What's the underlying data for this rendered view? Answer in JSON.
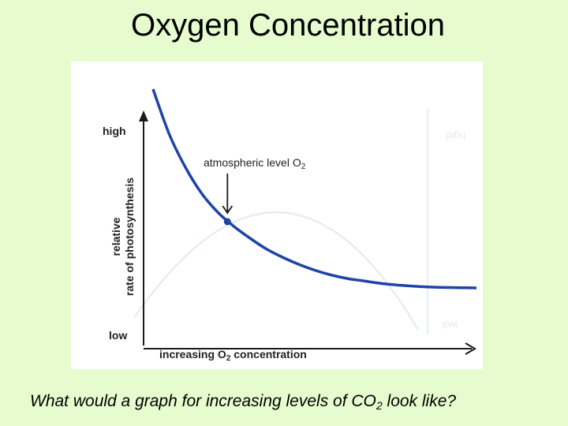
{
  "slide": {
    "title": "Oxygen Concentration",
    "caption_main": "What would a graph for increasing levels of CO",
    "caption_sub": "2",
    "caption_end": " look like?"
  },
  "colors": {
    "background": "#e6fccf",
    "curve": "#1f44a8",
    "axis": "#1a1a1a",
    "bleed_through": "#c8d8e8"
  },
  "chart_data": {
    "type": "line",
    "title": "",
    "xlabel_prefix": "increasing O",
    "xlabel_sub": "2",
    "xlabel_suffix": " concentration",
    "ylabel_line1": "relative",
    "ylabel_line2": "rate of photosynthesis",
    "y_high_label": "high",
    "y_low_label": "low",
    "xlim": [
      0,
      100
    ],
    "ylim": [
      0,
      100
    ],
    "series": [
      {
        "x": [
          0,
          5,
          10,
          15,
          20,
          25,
          30,
          35,
          40,
          45,
          50,
          55,
          60,
          65,
          70,
          75,
          80,
          85,
          90,
          95,
          100
        ],
        "values": [
          97,
          78,
          64,
          53,
          45,
          39,
          34,
          29.5,
          26,
          23,
          20.5,
          18.5,
          17,
          16,
          15,
          14.3,
          13.8,
          13.4,
          13.2,
          13.1,
          13
        ]
      }
    ],
    "annotation": {
      "text_prefix": "atmospheric level O",
      "text_sub": "2",
      "x": 23,
      "y": 41
    },
    "grid": false
  }
}
